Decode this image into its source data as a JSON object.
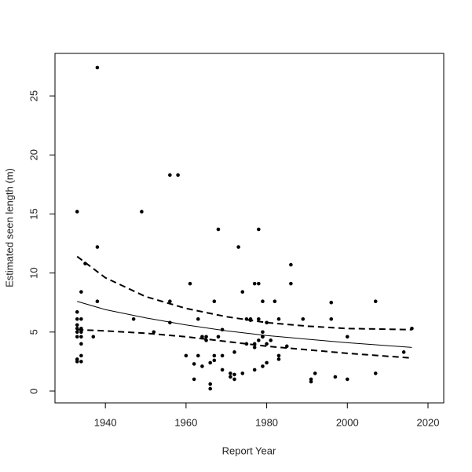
{
  "chart_data": {
    "type": "scatter",
    "x_label": "Report Year",
    "y_label": "Estimated seen length (m)",
    "xlim": [
      1927.5,
      2023.9
    ],
    "ylim": [
      -1.0,
      28.6
    ],
    "xticks": [
      1940,
      1960,
      1980,
      2000,
      2020
    ],
    "yticks": [
      0,
      5,
      10,
      15,
      20,
      25
    ],
    "color": "#000000",
    "x": [
      1933,
      1933,
      1933,
      1933,
      1933,
      1933,
      1933,
      1933,
      1933,
      1934,
      1934,
      1934,
      1934,
      1934,
      1934,
      1934,
      1934,
      1935,
      1937,
      1938,
      1938,
      1938,
      1947,
      1949,
      1952,
      1956,
      1956,
      1956,
      1958,
      1960,
      1961,
      1962,
      1962,
      1963,
      1963,
      1964,
      1964,
      1965,
      1965,
      1966,
      1966,
      1966,
      1967,
      1967,
      1967,
      1968,
      1968,
      1969,
      1969,
      1969,
      1971,
      1971,
      1972,
      1972,
      1972,
      1973,
      1974,
      1974,
      1975,
      1975,
      1976,
      1976,
      1977,
      1977,
      1977,
      1977,
      1978,
      1978,
      1978,
      1978,
      1979,
      1979,
      1979,
      1979,
      1979,
      1980,
      1980,
      1980,
      1981,
      1982,
      1983,
      1983,
      1983,
      1985,
      1986,
      1986,
      1989,
      1991,
      1991,
      1992,
      1996,
      1996,
      1997,
      2000,
      2000,
      2007,
      2007,
      2014,
      2016
    ],
    "values": [
      15.2,
      6.7,
      6.1,
      5.6,
      5.3,
      5.0,
      4.6,
      2.7,
      2.5,
      8.4,
      6.1,
      5.3,
      5.0,
      4.6,
      4.0,
      3.0,
      2.5,
      10.8,
      4.6,
      27.4,
      12.2,
      7.6,
      6.1,
      15.2,
      5.0,
      18.3,
      7.6,
      5.8,
      18.3,
      3.0,
      9.1,
      2.3,
      1.0,
      6.1,
      3.0,
      4.6,
      2.1,
      4.6,
      4.3,
      2.4,
      0.6,
      0.2,
      7.6,
      3.0,
      2.6,
      13.7,
      4.6,
      5.2,
      3.0,
      1.8,
      1.2,
      1.5,
      1.0,
      1.4,
      3.3,
      12.2,
      8.4,
      1.5,
      6.1,
      4.0,
      6.1,
      6.0,
      9.1,
      3.7,
      4.0,
      1.8,
      13.7,
      9.1,
      6.1,
      4.3,
      7.6,
      5.0,
      4.6,
      4.6,
      2.1,
      5.8,
      4.0,
      2.4,
      4.3,
      7.6,
      6.1,
      3.0,
      2.7,
      3.8,
      10.7,
      9.1,
      6.1,
      1.0,
      0.8,
      1.5,
      7.5,
      6.1,
      1.2,
      4.6,
      1.0,
      7.6,
      1.5,
      3.3,
      5.3
    ],
    "fits": [
      {
        "dashed": false,
        "x": [
          1933,
          1940,
          1950,
          1960,
          1970,
          1980,
          1990,
          2000,
          2016
        ],
        "values": [
          7.6,
          6.9,
          6.2,
          5.6,
          5.1,
          4.7,
          4.4,
          4.1,
          3.7
        ]
      },
      {
        "dashed": true,
        "x": [
          1933,
          1940,
          1950,
          1960,
          1970,
          1980,
          1990,
          2000,
          2016
        ],
        "values": [
          11.4,
          9.6,
          8.0,
          7.0,
          6.3,
          5.8,
          5.5,
          5.3,
          5.2
        ]
      },
      {
        "dashed": true,
        "x": [
          1933,
          1940,
          1950,
          1960,
          1970,
          1980,
          1990,
          2000,
          2016
        ],
        "values": [
          5.2,
          5.1,
          4.9,
          4.6,
          4.2,
          3.8,
          3.5,
          3.2,
          2.8
        ]
      }
    ]
  }
}
